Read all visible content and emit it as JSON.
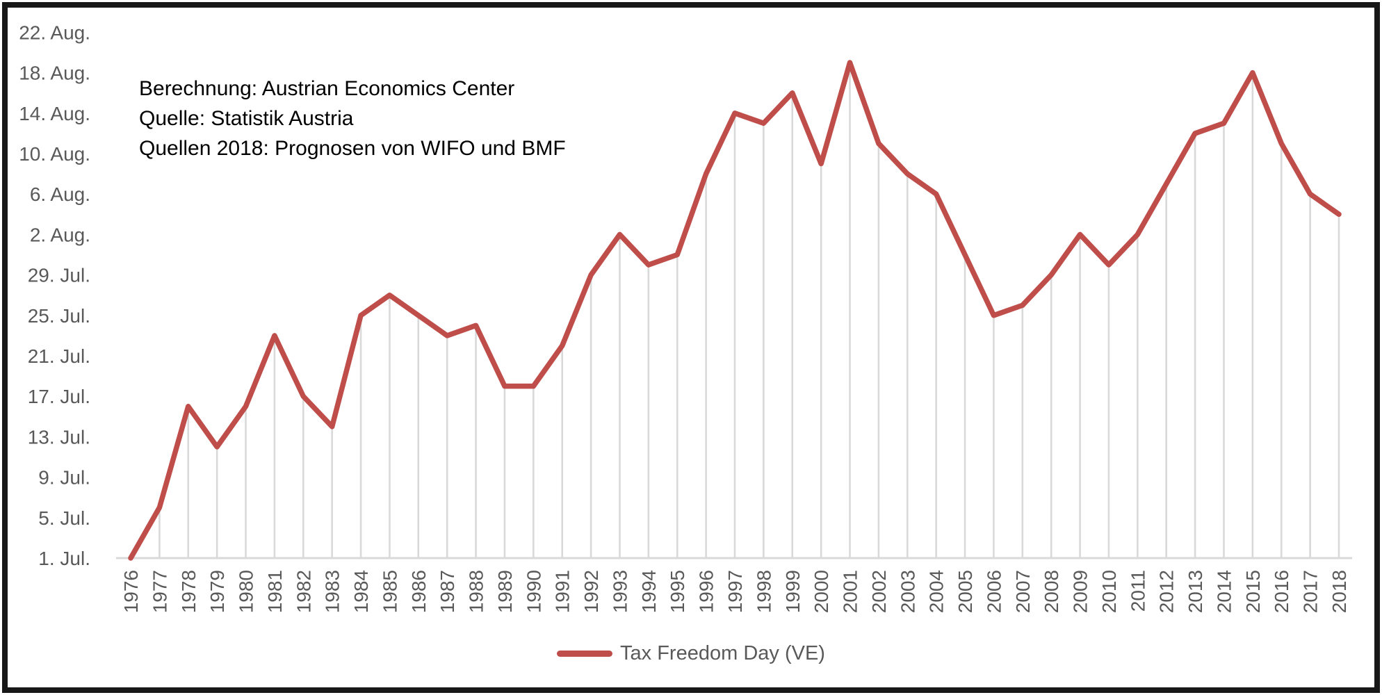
{
  "chart_data": {
    "type": "line",
    "title": "",
    "x": [
      "1976",
      "1977",
      "1978",
      "1979",
      "1980",
      "1981",
      "1982",
      "1983",
      "1984",
      "1985",
      "1986",
      "1987",
      "1988",
      "1989",
      "1990",
      "1991",
      "1992",
      "1993",
      "1994",
      "1995",
      "1996",
      "1997",
      "1998",
      "1999",
      "2000",
      "2001",
      "2002",
      "2003",
      "2004",
      "2005",
      "2006",
      "2007",
      "2008",
      "2009",
      "2010",
      "2011",
      "2012",
      "2013",
      "2014",
      "2015",
      "2016",
      "2017",
      "2018"
    ],
    "series": [
      {
        "name": "Tax Freedom Day (VE)",
        "date_estimates": [
          "1. Jul",
          "6. Jul",
          "16. Jul",
          "12. Jul",
          "16. Jul",
          "23. Jul",
          "17. Jul",
          "14. Jul",
          "25. Jul",
          "27. Jul",
          "25. Jul",
          "23. Jul",
          "24. Jul",
          "18. Jul",
          "18. Jul",
          "22. Jul",
          "29. Jul",
          "2. Aug",
          "30. Jul",
          "31. Jul",
          "8. Aug",
          "14. Aug",
          "13. Aug",
          "16. Aug",
          "9. Aug",
          "19. Aug",
          "11. Aug",
          "8. Aug",
          "6. Aug",
          "31. Jul",
          "25. Jul",
          "26. Jul",
          "29. Jul",
          "2. Aug",
          "30. Jul",
          "2. Aug",
          "7. Aug",
          "12. Aug",
          "13. Aug",
          "18. Aug",
          "11. Aug",
          "6. Aug",
          "4. Aug"
        ],
        "values_day_index": [
          1,
          6,
          16,
          12,
          16,
          23,
          17,
          14,
          25,
          27,
          25,
          23,
          24,
          18,
          18,
          22,
          29,
          33,
          30,
          31,
          39,
          45,
          44,
          47,
          40,
          50,
          42,
          39,
          37,
          31,
          25,
          26,
          29,
          33,
          30,
          33,
          38,
          43,
          44,
          49,
          42,
          37,
          35
        ]
      }
    ],
    "y_axis": {
      "tick_labels": [
        "1. Jul.",
        "5. Jul.",
        "9. Jul.",
        "13. Jul.",
        "17. Jul.",
        "21. Jul.",
        "25. Jul.",
        "29. Jul.",
        "2. Aug.",
        "6. Aug.",
        "10. Aug.",
        "14. Aug.",
        "18. Aug.",
        "22. Aug."
      ],
      "tick_values": [
        1,
        5,
        9,
        13,
        17,
        21,
        25,
        29,
        33,
        37,
        41,
        45,
        49,
        53
      ],
      "range": [
        1,
        53
      ],
      "unit_note": "day index, 1 = 1. Jul, 53 = 22. Aug"
    },
    "x_axis": {
      "tick_labels": [
        "1976",
        "1977",
        "1978",
        "1979",
        "1980",
        "1981",
        "1982",
        "1983",
        "1984",
        "1985",
        "1986",
        "1987",
        "1988",
        "1989",
        "1990",
        "1991",
        "1992",
        "1993",
        "1994",
        "1995",
        "1996",
        "1997",
        "1998",
        "1999",
        "2000",
        "2001",
        "2002",
        "2003",
        "2004",
        "2005",
        "2006",
        "2007",
        "2008",
        "2009",
        "2010",
        "2011",
        "2012",
        "2013",
        "2014",
        "2015",
        "2016",
        "2017",
        "2018"
      ],
      "label_rotation_deg": -90
    },
    "gridlines": "vertical drop lines from each point to baseline",
    "legend_position": "bottom-center"
  },
  "annotation": {
    "line1": "Berechnung: Austrian Economics Center",
    "line2": "Quelle: Statistik Austria",
    "line3": "Quellen 2018: Prognosen von WIFO und BMF"
  },
  "legend": {
    "label": "Tax Freedom Day (VE)"
  },
  "colors": {
    "line": "#BF4E4B",
    "gridline": "#D9D9D9",
    "axis_text": "#595959",
    "annotation_text": "#000000",
    "border": "#181818",
    "background": "#FFFFFF"
  }
}
